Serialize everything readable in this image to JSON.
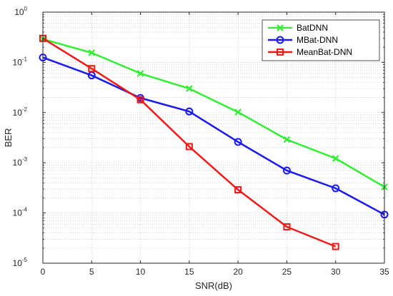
{
  "chart_data": {
    "type": "line",
    "xlabel": "SNR(dB)",
    "ylabel": "BER",
    "y_scale": "log",
    "xlim": [
      0,
      35
    ],
    "ylim": [
      1e-05,
      1
    ],
    "x_ticks": [
      0,
      5,
      10,
      15,
      20,
      25,
      30,
      35
    ],
    "y_tick_exponents": [
      -5,
      -4,
      -3,
      -2,
      -1,
      0
    ],
    "y_tick_base": "10",
    "grid": true,
    "legend_position": "top-right",
    "series": [
      {
        "name": "BatDNN",
        "color": "#33ee33",
        "marker": "x",
        "x": [
          0,
          5,
          10,
          15,
          20,
          25,
          30,
          35
        ],
        "y": [
          0.29,
          0.155,
          0.06,
          0.03,
          0.0102,
          0.0029,
          0.00122,
          0.00033
        ]
      },
      {
        "name": "MBat-DNN",
        "color": "#1a1aee",
        "marker": "circle",
        "x": [
          0,
          5,
          10,
          15,
          20,
          25,
          30,
          35
        ],
        "y": [
          0.125,
          0.055,
          0.0195,
          0.0105,
          0.0026,
          0.0007,
          0.00031,
          9.3e-05
        ]
      },
      {
        "name": "MeanBat-DNN",
        "color": "#ee1a1a",
        "marker": "square",
        "x": [
          0,
          5,
          10,
          15,
          20,
          25,
          30
        ],
        "y": [
          0.3,
          0.075,
          0.018,
          0.0021,
          0.00029,
          5.3e-05,
          2.15e-05
        ]
      }
    ]
  }
}
